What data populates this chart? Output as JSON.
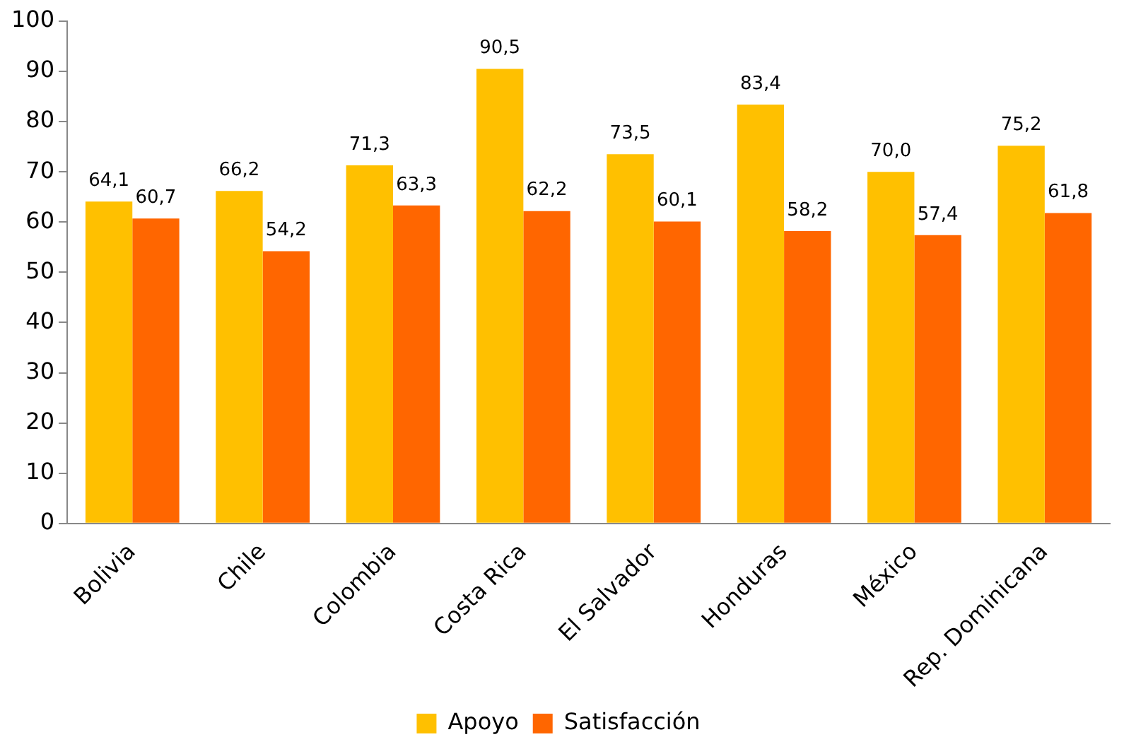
{
  "chart_data": {
    "type": "bar",
    "categories": [
      "Bolivia",
      "Chile",
      "Colombia",
      "Costa Rica",
      "El Salvador",
      "Honduras",
      "México",
      "Rep. Dominicana"
    ],
    "series": [
      {
        "name": "Apoyo",
        "color": "#ffc000",
        "values": [
          64.1,
          66.2,
          71.3,
          90.5,
          73.5,
          83.4,
          70.0,
          75.2
        ],
        "value_labels": [
          "64,1",
          "66,2",
          "71,3",
          "90,5",
          "73,5",
          "83,4",
          "70,0",
          "75,2"
        ]
      },
      {
        "name": "Satisfacción",
        "color": "#ff6600",
        "values": [
          60.7,
          54.2,
          63.3,
          62.2,
          60.1,
          58.2,
          57.4,
          61.8
        ],
        "value_labels": [
          "60,7",
          "54,2",
          "63,3",
          "62,2",
          "60,1",
          "58,2",
          "57,4",
          "61,8"
        ]
      }
    ],
    "ylim": [
      0,
      100
    ],
    "yticks": [
      0,
      10,
      20,
      30,
      40,
      50,
      60,
      70,
      80,
      90,
      100
    ],
    "grid": false,
    "legend": "bottom"
  }
}
